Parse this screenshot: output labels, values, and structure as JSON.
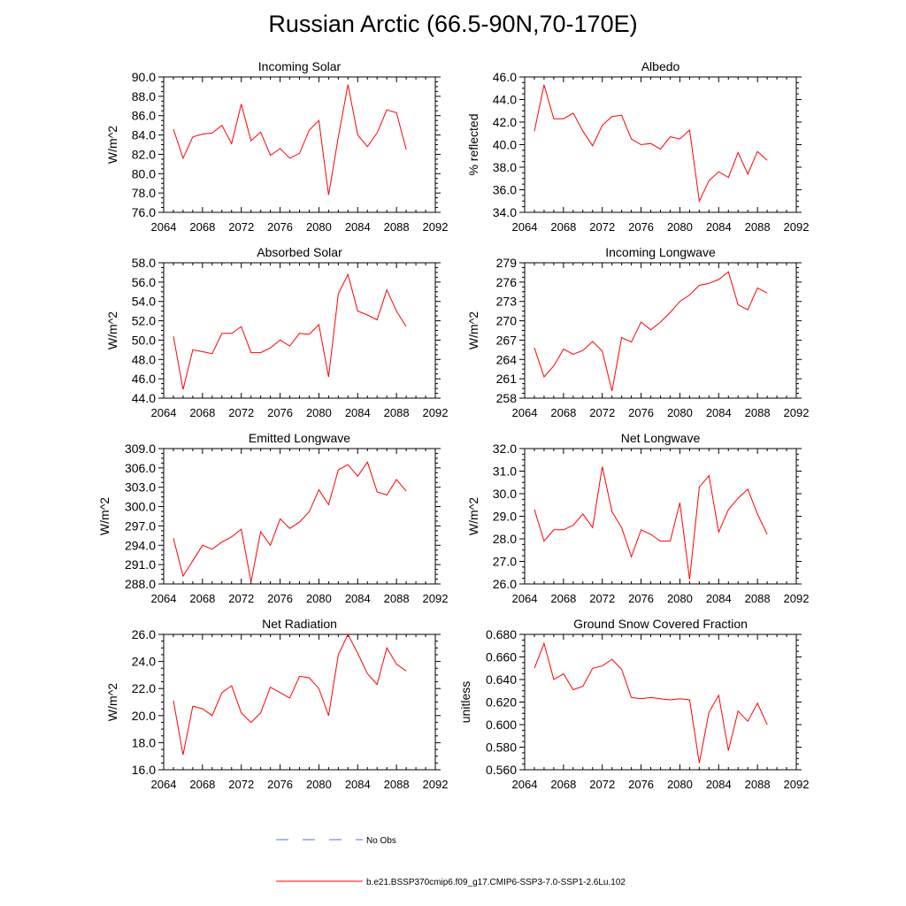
{
  "figure": {
    "title": "Russian Arctic (66.5-90N,70-170E)",
    "legend": {
      "placement": "bottom-center",
      "items": [
        {
          "label": "No Obs",
          "color": "#5a6fd8",
          "style": "dashed"
        },
        {
          "label": "b.e21.BSSP370cmip6.f09_g17.CMIP6-SSP3-7.0-SSP1-2.6Lu.102",
          "color": "#ff0000",
          "style": "solid"
        }
      ]
    },
    "colors": {
      "series": "#ff0000",
      "axes": "#000000",
      "no_obs": "#5a6fd8"
    }
  },
  "chart_data": [
    {
      "type": "line",
      "title": "Incoming Solar",
      "xlabel": "",
      "ylabel": "W/m^2",
      "xlim": [
        2064,
        2092
      ],
      "ylim": [
        76.0,
        90.0
      ],
      "xticks": [
        2064,
        2068,
        2072,
        2076,
        2080,
        2084,
        2088,
        2092
      ],
      "yticks": [
        "76.0",
        "78.0",
        "80.0",
        "82.0",
        "84.0",
        "86.0",
        "88.0",
        "90.0"
      ],
      "x": [
        2065,
        2066,
        2067,
        2068,
        2069,
        2070,
        2071,
        2072,
        2073,
        2074,
        2075,
        2076,
        2077,
        2078,
        2079,
        2080,
        2081,
        2082,
        2083,
        2084,
        2085,
        2086,
        2087,
        2088,
        2089
      ],
      "series": [
        {
          "color": "#ff0000",
          "values": [
            84.6,
            81.6,
            83.8,
            84.1,
            84.2,
            85.0,
            83.1,
            87.2,
            83.4,
            84.3,
            81.9,
            82.6,
            81.6,
            82.1,
            84.5,
            85.5,
            77.8,
            83.8,
            89.2,
            84.0,
            82.8,
            84.2,
            86.6,
            86.3,
            82.5
          ]
        }
      ]
    },
    {
      "type": "line",
      "title": "Albedo",
      "xlabel": "",
      "ylabel": "% reflected",
      "xlim": [
        2064,
        2092
      ],
      "ylim": [
        34.0,
        46.0
      ],
      "xticks": [
        2064,
        2068,
        2072,
        2076,
        2080,
        2084,
        2088,
        2092
      ],
      "yticks": [
        "34.0",
        "36.0",
        "38.0",
        "40.0",
        "42.0",
        "44.0",
        "46.0"
      ],
      "x": [
        2065,
        2066,
        2067,
        2068,
        2069,
        2070,
        2071,
        2072,
        2073,
        2074,
        2075,
        2076,
        2077,
        2078,
        2079,
        2080,
        2081,
        2082,
        2083,
        2084,
        2085,
        2086,
        2087,
        2088,
        2089
      ],
      "series": [
        {
          "color": "#ff0000",
          "values": [
            41.2,
            45.3,
            42.3,
            42.3,
            42.8,
            41.2,
            39.9,
            41.7,
            42.5,
            42.6,
            40.5,
            40.0,
            40.1,
            39.6,
            40.7,
            40.5,
            41.3,
            35.0,
            36.8,
            37.6,
            37.1,
            39.3,
            37.4,
            39.4,
            38.6
          ]
        }
      ]
    },
    {
      "type": "line",
      "title": "Absorbed Solar",
      "xlabel": "",
      "ylabel": "W/m^2",
      "xlim": [
        2064,
        2092
      ],
      "ylim": [
        44.0,
        58.0
      ],
      "xticks": [
        2064,
        2068,
        2072,
        2076,
        2080,
        2084,
        2088,
        2092
      ],
      "yticks": [
        "44.0",
        "46.0",
        "48.0",
        "50.0",
        "52.0",
        "54.0",
        "56.0",
        "58.0"
      ],
      "x": [
        2065,
        2066,
        2067,
        2068,
        2069,
        2070,
        2071,
        2072,
        2073,
        2074,
        2075,
        2076,
        2077,
        2078,
        2079,
        2080,
        2081,
        2082,
        2083,
        2084,
        2085,
        2086,
        2087,
        2088,
        2089
      ],
      "series": [
        {
          "color": "#ff0000",
          "values": [
            50.4,
            44.9,
            49.0,
            48.8,
            48.6,
            50.7,
            50.7,
            51.4,
            48.7,
            48.7,
            49.2,
            50.0,
            49.4,
            50.7,
            50.6,
            51.6,
            46.2,
            54.8,
            56.8,
            53.0,
            52.6,
            52.1,
            55.2,
            53.0,
            51.4
          ]
        }
      ]
    },
    {
      "type": "line",
      "title": "Incoming Longwave",
      "xlabel": "",
      "ylabel": "W/m^2",
      "xlim": [
        2064,
        2092
      ],
      "ylim": [
        258,
        279
      ],
      "xticks": [
        2064,
        2068,
        2072,
        2076,
        2080,
        2084,
        2088,
        2092
      ],
      "yticks": [
        "258",
        "261",
        "264",
        "267",
        "270",
        "273",
        "276",
        "279"
      ],
      "x": [
        2065,
        2066,
        2067,
        2068,
        2069,
        2070,
        2071,
        2072,
        2073,
        2074,
        2075,
        2076,
        2077,
        2078,
        2079,
        2080,
        2081,
        2082,
        2083,
        2084,
        2085,
        2086,
        2087,
        2088,
        2089
      ],
      "series": [
        {
          "color": "#ff0000",
          "values": [
            265.8,
            261.3,
            263.0,
            265.6,
            264.8,
            265.4,
            266.8,
            265.3,
            259.1,
            267.4,
            266.7,
            269.8,
            268.6,
            269.8,
            271.3,
            273.0,
            274.0,
            275.5,
            275.8,
            276.4,
            277.6,
            272.5,
            271.7,
            275.1,
            274.3
          ]
        }
      ]
    },
    {
      "type": "line",
      "title": "Emitted Longwave",
      "xlabel": "",
      "ylabel": "W/m^2",
      "xlim": [
        2064,
        2092
      ],
      "ylim": [
        288.0,
        309.0
      ],
      "xticks": [
        2064,
        2068,
        2072,
        2076,
        2080,
        2084,
        2088,
        2092
      ],
      "yticks": [
        "288.0",
        "291.0",
        "294.0",
        "297.0",
        "300.0",
        "303.0",
        "306.0",
        "309.0"
      ],
      "x": [
        2065,
        2066,
        2067,
        2068,
        2069,
        2070,
        2071,
        2072,
        2073,
        2074,
        2075,
        2076,
        2077,
        2078,
        2079,
        2080,
        2081,
        2082,
        2083,
        2084,
        2085,
        2086,
        2087,
        2088,
        2089
      ],
      "series": [
        {
          "color": "#ff0000",
          "values": [
            295.1,
            289.2,
            291.6,
            294.0,
            293.4,
            294.5,
            295.3,
            296.5,
            288.3,
            296.1,
            294.0,
            298.1,
            296.6,
            297.6,
            299.2,
            302.6,
            300.3,
            305.7,
            306.5,
            304.7,
            306.9,
            302.3,
            301.8,
            304.2,
            302.4
          ]
        }
      ]
    },
    {
      "type": "line",
      "title": "Net Longwave",
      "xlabel": "",
      "ylabel": "W/m^2",
      "xlim": [
        2064,
        2092
      ],
      "ylim": [
        26.0,
        32.0
      ],
      "xticks": [
        2064,
        2068,
        2072,
        2076,
        2080,
        2084,
        2088,
        2092
      ],
      "yticks": [
        "26.0",
        "27.0",
        "28.0",
        "29.0",
        "30.0",
        "31.0",
        "32.0"
      ],
      "x": [
        2065,
        2066,
        2067,
        2068,
        2069,
        2070,
        2071,
        2072,
        2073,
        2074,
        2075,
        2076,
        2077,
        2078,
        2079,
        2080,
        2081,
        2082,
        2083,
        2084,
        2085,
        2086,
        2087,
        2088,
        2089
      ],
      "series": [
        {
          "color": "#ff0000",
          "values": [
            29.3,
            27.9,
            28.4,
            28.4,
            28.6,
            29.1,
            28.5,
            31.2,
            29.2,
            28.5,
            27.2,
            28.4,
            28.2,
            27.9,
            27.9,
            29.6,
            26.2,
            30.3,
            30.8,
            28.3,
            29.3,
            29.8,
            30.2,
            29.1,
            28.2
          ]
        }
      ]
    },
    {
      "type": "line",
      "title": "Net Radiation",
      "xlabel": "",
      "ylabel": "W/m^2",
      "xlim": [
        2064,
        2092
      ],
      "ylim": [
        16.0,
        26.0
      ],
      "xticks": [
        2064,
        2068,
        2072,
        2076,
        2080,
        2084,
        2088,
        2092
      ],
      "yticks": [
        "16.0",
        "18.0",
        "20.0",
        "22.0",
        "24.0",
        "26.0"
      ],
      "x": [
        2065,
        2066,
        2067,
        2068,
        2069,
        2070,
        2071,
        2072,
        2073,
        2074,
        2075,
        2076,
        2077,
        2078,
        2079,
        2080,
        2081,
        2082,
        2083,
        2084,
        2085,
        2086,
        2087,
        2088,
        2089
      ],
      "series": [
        {
          "color": "#ff0000",
          "values": [
            21.1,
            17.1,
            20.7,
            20.5,
            20.0,
            21.7,
            22.2,
            20.2,
            19.5,
            20.2,
            22.1,
            21.7,
            21.3,
            22.9,
            22.8,
            22.0,
            20.0,
            24.5,
            26.0,
            24.6,
            23.1,
            22.3,
            25.0,
            23.8,
            23.3
          ]
        }
      ]
    },
    {
      "type": "line",
      "title": "Ground Snow Covered Fraction",
      "xlabel": "",
      "ylabel": "unitless",
      "xlim": [
        2064,
        2092
      ],
      "ylim": [
        0.56,
        0.68
      ],
      "xticks": [
        2064,
        2068,
        2072,
        2076,
        2080,
        2084,
        2088,
        2092
      ],
      "yticks": [
        "0.560",
        "0.580",
        "0.600",
        "0.620",
        "0.640",
        "0.660",
        "0.680"
      ],
      "x": [
        2065,
        2066,
        2067,
        2068,
        2069,
        2070,
        2071,
        2072,
        2073,
        2074,
        2075,
        2076,
        2077,
        2078,
        2079,
        2080,
        2081,
        2082,
        2083,
        2084,
        2085,
        2086,
        2087,
        2088,
        2089
      ],
      "series": [
        {
          "color": "#ff0000",
          "values": [
            0.65,
            0.672,
            0.64,
            0.645,
            0.631,
            0.634,
            0.65,
            0.652,
            0.658,
            0.649,
            0.624,
            0.623,
            0.624,
            0.623,
            0.622,
            0.623,
            0.622,
            0.566,
            0.611,
            0.626,
            0.577,
            0.612,
            0.603,
            0.619,
            0.6
          ]
        }
      ]
    }
  ]
}
